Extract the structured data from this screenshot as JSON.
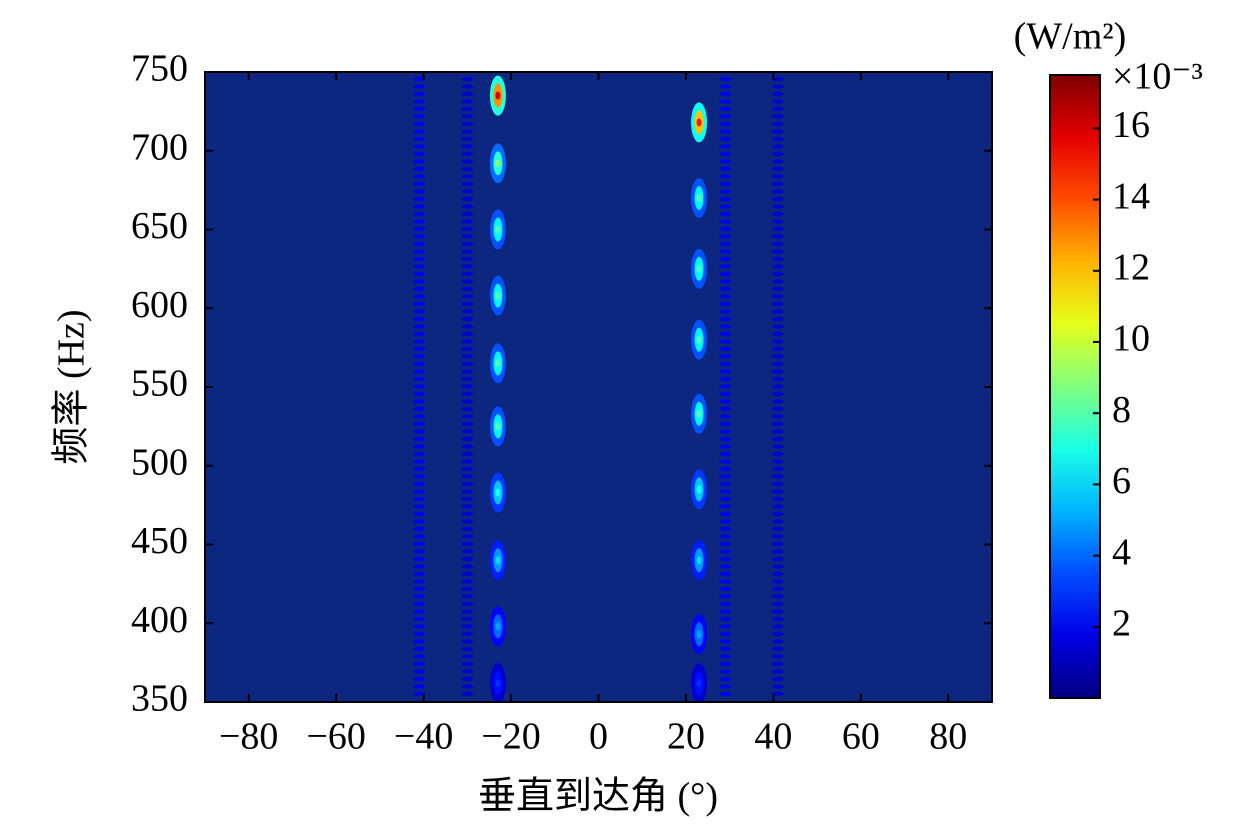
{
  "chart_data": {
    "type": "heatmap",
    "xlabel": "垂直到达角 (°)",
    "ylabel": "频率 (Hz)",
    "xlim": [
      -90,
      90
    ],
    "ylim": [
      350,
      750
    ],
    "xticks": [
      {
        "value": -80,
        "label": "−80"
      },
      {
        "value": -60,
        "label": "−60"
      },
      {
        "value": -40,
        "label": "−40"
      },
      {
        "value": -20,
        "label": "−20"
      },
      0,
      20,
      40,
      60,
      80
    ],
    "yticks": [
      350,
      400,
      450,
      500,
      550,
      600,
      650,
      700,
      750
    ],
    "background_color": "#0d2680",
    "colorbar_label": "(W/m²)",
    "colorbar_scale": "×10⁻³",
    "clim": [
      0,
      17.5
    ],
    "cticks": [
      2,
      4,
      6,
      8,
      10,
      12,
      14,
      16
    ],
    "colormap": "jet",
    "series": [
      {
        "x": -23,
        "y": [
          362,
          398,
          440,
          483,
          525,
          565,
          608,
          650,
          692,
          735
        ],
        "values": [
          3,
          5,
          6,
          7,
          8,
          8,
          8,
          8,
          9,
          16
        ]
      },
      {
        "x": 23,
        "y": [
          362,
          393,
          440,
          485,
          533,
          580,
          625,
          670,
          718
        ],
        "values": [
          3,
          5,
          6,
          7,
          8,
          8,
          8,
          8,
          15
        ]
      }
    ],
    "faint_stripes": [
      {
        "x": -41,
        "value": 2
      },
      {
        "x": -30,
        "value": 1.5
      },
      {
        "x": 29,
        "value": 2
      },
      {
        "x": 41,
        "value": 1.5
      }
    ]
  }
}
